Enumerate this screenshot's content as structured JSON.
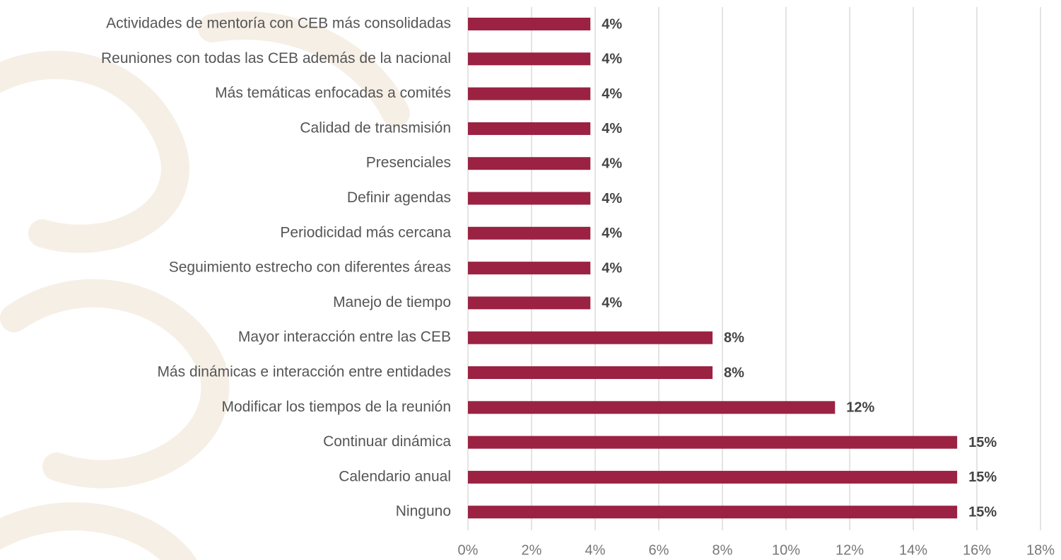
{
  "chart_data": {
    "type": "bar",
    "orientation": "horizontal",
    "categories": [
      "Actividades de mentoría con CEB más consolidadas",
      "Reuniones con todas las CEB además de la nacional",
      "Más temáticas enfocadas a comités",
      "Calidad de transmisión",
      "Presenciales",
      "Definir agendas",
      "Periodicidad más cercana",
      "Seguimiento estrecho con diferentes áreas",
      "Manejo de tiempo",
      "Mayor interacción entre las CEB",
      "Más dinámicas e interacción entre entidades",
      "Modificar los tiempos de la reunión",
      "Continuar dinámica",
      "Calendario anual",
      "Ninguno"
    ],
    "values": [
      3.85,
      3.85,
      3.85,
      3.85,
      3.85,
      3.85,
      3.85,
      3.85,
      3.85,
      7.69,
      7.69,
      11.54,
      15.38,
      15.38,
      15.38
    ],
    "value_labels": [
      "4%",
      "4%",
      "4%",
      "4%",
      "4%",
      "4%",
      "4%",
      "4%",
      "4%",
      "8%",
      "8%",
      "12%",
      "15%",
      "15%",
      "15%"
    ],
    "color": "#9b2242",
    "xlim": [
      0,
      18
    ],
    "xticks": [
      {
        "value": 0,
        "label": "0%"
      },
      {
        "value": 2,
        "label": "2%"
      },
      {
        "value": 4,
        "label": "4%"
      },
      {
        "value": 6,
        "label": "6%"
      },
      {
        "value": 8,
        "label": "8%"
      },
      {
        "value": 10,
        "label": "10%"
      },
      {
        "value": 12,
        "label": "12%"
      },
      {
        "value": 14,
        "label": "14%"
      },
      {
        "value": 16,
        "label": "16%"
      },
      {
        "value": 18,
        "label": "18%"
      }
    ],
    "grid": true
  }
}
